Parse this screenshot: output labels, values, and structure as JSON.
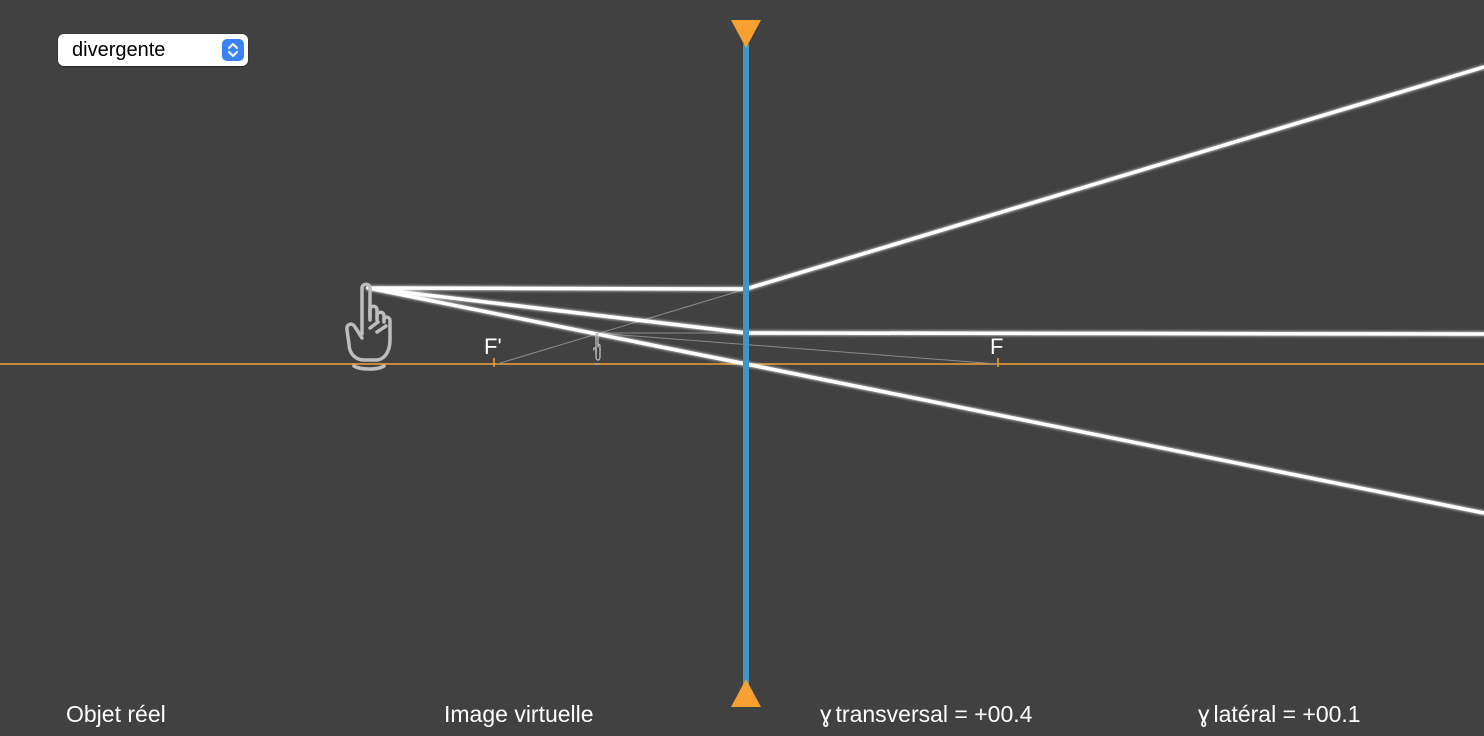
{
  "lens_select": {
    "value": "divergente"
  },
  "focal_labels": {
    "f_prime": "F'",
    "f": "F"
  },
  "status": {
    "object_type": "Objet réel",
    "image_type": "Image virtuelle",
    "gamma_symbol": "ɣ",
    "transversal": "transversal = +00.4",
    "lateral": "latéral = +00.1"
  },
  "icons": {
    "object": "pointing-hand-icon",
    "image": "small-hand-icon",
    "lens_top_marker": "triangle-down-icon",
    "lens_bottom_marker": "triangle-up-icon",
    "select_arrows": "chevron-up-down-icon"
  },
  "colors": {
    "background": "#414141",
    "axis": "#f5a030",
    "lens": "#3d95c8",
    "lens_marker": "#f5a030",
    "ray": "#ffffff",
    "construction_line": "#8a8a8a",
    "select_accent": "#3b82f6"
  }
}
